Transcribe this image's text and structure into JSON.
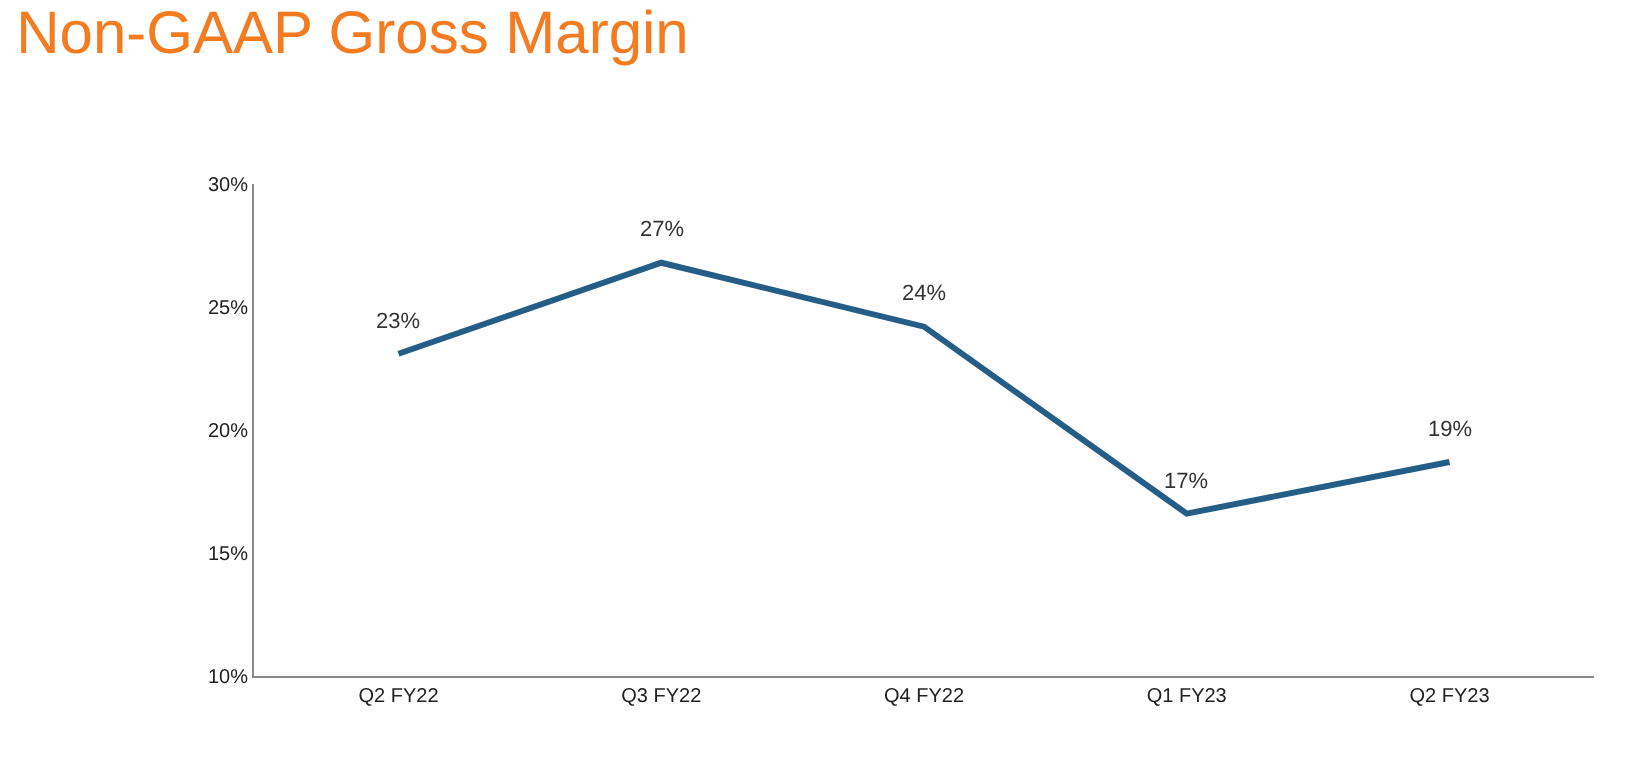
{
  "chart_data": {
    "type": "line",
    "title": "Non-GAAP Gross Margin",
    "categories": [
      "Q2 FY22",
      "Q3 FY22",
      "Q4 FY22",
      "Q1 FY23",
      "Q2 FY23"
    ],
    "series": [
      {
        "color": "#245d86",
        "values": [
          23.1,
          26.8,
          24.2,
          16.6,
          18.7
        ],
        "value_labels": [
          "23%",
          "27%",
          "24%",
          "17%",
          "19%"
        ]
      }
    ],
    "ylim": [
      10,
      30
    ],
    "yticks": [
      {
        "value": 10,
        "label": "10%"
      },
      {
        "value": 15,
        "label": "15%"
      },
      {
        "value": 20,
        "label": "20%"
      },
      {
        "value": 25,
        "label": "25%"
      },
      {
        "value": 30,
        "label": "30%"
      }
    ],
    "marker": "none",
    "line_style": "solid"
  }
}
